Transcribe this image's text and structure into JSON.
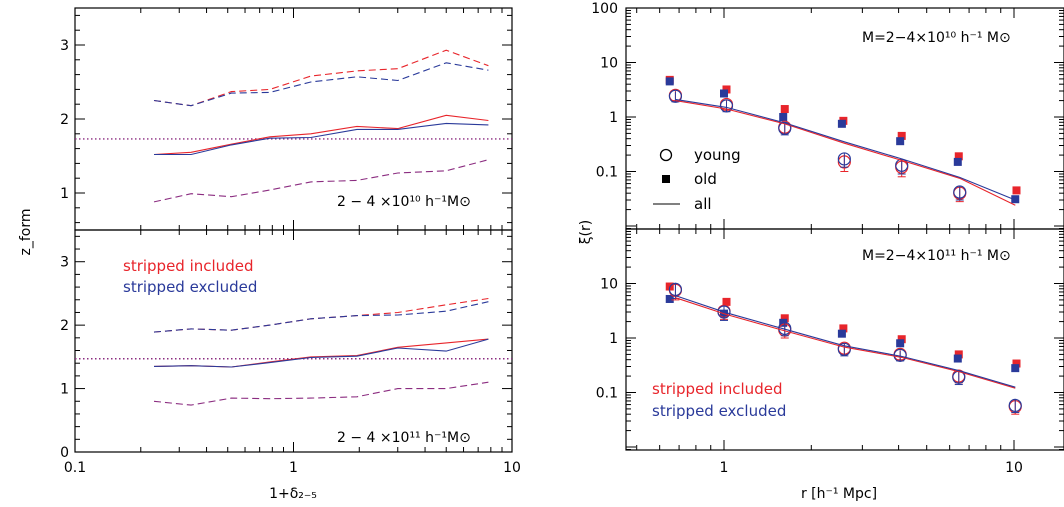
{
  "colors": {
    "red": "#e8252b",
    "blue": "#2a3a9a",
    "purple": "#8b2c80",
    "black": "#000000"
  },
  "left_figure": {
    "xlabel": "1+δ₂₋₅",
    "ylabel": "z_form",
    "xticks": [
      "0.1",
      "1",
      "10"
    ],
    "yticks_top": [
      "1",
      "2",
      "3"
    ],
    "yticks_bottom": [
      "0",
      "1",
      "2",
      "3"
    ],
    "top_label": "2 − 4 ×10¹⁰ h⁻¹M⊙",
    "bottom_label": "2 − 4 ×10¹¹ h⁻¹M⊙",
    "legend": {
      "red": "stripped included",
      "blue": "stripped excluded"
    }
  },
  "right_figure": {
    "xlabel": "r [h⁻¹ Mpc]",
    "ylabel": "ξ(r)",
    "xticks": [
      "1",
      "10"
    ],
    "yticks": [
      "0.1",
      "1",
      "10",
      "100"
    ],
    "top_label": "M=2−4×10¹⁰ h⁻¹ M⊙",
    "bottom_label": "M=2−4×10¹¹ h⁻¹ M⊙",
    "legend": {
      "young": "young",
      "old": "old",
      "all": "all"
    },
    "legend_bottom": {
      "red": "stripped included",
      "blue": "stripped excluded"
    }
  },
  "chart_data": [
    {
      "type": "line",
      "title": "2 − 4 ×10¹⁰ h⁻¹M⊙",
      "xlabel": "1+δ₂₋₅",
      "ylabel": "z_form",
      "xscale": "log",
      "xlim": [
        0.1,
        10
      ],
      "ylim": [
        0.5,
        3.5
      ],
      "x": [
        0.23,
        0.34,
        0.52,
        0.78,
        1.2,
        1.95,
        3.0,
        5.0,
        7.8
      ],
      "hline": 1.73,
      "series": [
        {
          "name": "stripped included",
          "style": "solid",
          "color": "red",
          "values": [
            1.52,
            1.55,
            1.66,
            1.76,
            1.8,
            1.9,
            1.87,
            2.05,
            1.98
          ]
        },
        {
          "name": "stripped excluded",
          "style": "solid",
          "color": "blue",
          "values": [
            1.52,
            1.52,
            1.65,
            1.74,
            1.75,
            1.86,
            1.86,
            1.94,
            1.92
          ]
        },
        {
          "name": "stripped included",
          "style": "dashed",
          "color": "red",
          "values": [
            2.25,
            2.18,
            2.37,
            2.4,
            2.58,
            2.65,
            2.68,
            2.93,
            2.72
          ]
        },
        {
          "name": "stripped excluded",
          "style": "dashed",
          "color": "blue",
          "values": [
            2.25,
            2.18,
            2.35,
            2.36,
            2.5,
            2.57,
            2.52,
            2.76,
            2.66
          ]
        },
        {
          "name": "",
          "style": "dashed",
          "color": "purple",
          "values": [
            0.88,
            0.99,
            0.95,
            1.04,
            1.15,
            1.17,
            1.27,
            1.3,
            1.45
          ]
        }
      ]
    },
    {
      "type": "line",
      "title": "2 − 4 ×10¹¹ h⁻¹M⊙",
      "xlabel": "1+δ₂₋₅",
      "ylabel": "z_form",
      "xscale": "log",
      "xlim": [
        0.1,
        10
      ],
      "ylim": [
        0,
        3.5
      ],
      "x": [
        0.23,
        0.34,
        0.52,
        0.78,
        1.2,
        1.95,
        3.0,
        5.0,
        7.8
      ],
      "hline": 1.47,
      "series": [
        {
          "name": "stripped included",
          "style": "solid",
          "color": "red",
          "values": [
            1.35,
            1.36,
            1.34,
            1.42,
            1.5,
            1.52,
            1.65,
            1.72,
            1.78
          ]
        },
        {
          "name": "stripped excluded",
          "style": "solid",
          "color": "blue",
          "values": [
            1.35,
            1.36,
            1.34,
            1.41,
            1.49,
            1.51,
            1.64,
            1.59,
            1.78
          ]
        },
        {
          "name": "stripped included",
          "style": "dashed",
          "color": "red",
          "values": [
            1.89,
            1.94,
            1.92,
            2.0,
            2.1,
            2.15,
            2.2,
            2.32,
            2.42
          ]
        },
        {
          "name": "stripped excluded",
          "style": "dashed",
          "color": "blue",
          "values": [
            1.89,
            1.94,
            1.92,
            2.0,
            2.1,
            2.15,
            2.16,
            2.22,
            2.37
          ]
        },
        {
          "name": "",
          "style": "dashed",
          "color": "purple",
          "values": [
            0.8,
            0.74,
            0.85,
            0.84,
            0.85,
            0.87,
            1.0,
            1.0,
            1.1
          ]
        }
      ]
    },
    {
      "type": "scatter",
      "title": "M=2−4×10¹⁰ h⁻¹ M⊙",
      "xlabel": "r [h⁻¹ Mpc]",
      "ylabel": "ξ(r)",
      "xscale": "log",
      "yscale": "log",
      "xlim": [
        0.5,
        12
      ],
      "ylim": [
        0.02,
        100
      ],
      "series": [
        {
          "name": "old",
          "marker": "square",
          "color": "red",
          "x": [
            0.65,
            1.02,
            1.62,
            2.58,
            4.1,
            6.45,
            10.2
          ],
          "values": [
            4.8,
            3.2,
            1.4,
            0.85,
            0.45,
            0.19,
            0.045
          ]
        },
        {
          "name": "old",
          "marker": "square",
          "color": "blue",
          "x": [
            0.65,
            1.0,
            1.6,
            2.55,
            4.05,
            6.4,
            10.1
          ],
          "values": [
            4.5,
            2.7,
            1.0,
            0.75,
            0.36,
            0.15,
            0.031
          ]
        },
        {
          "name": "young",
          "marker": "circle",
          "color": "red",
          "x": [
            0.68,
            1.02,
            1.62,
            2.6,
            4.1,
            6.5
          ],
          "values": [
            2.5,
            1.7,
            0.65,
            0.15,
            0.12,
            0.04
          ],
          "err": [
            0.5,
            0.35,
            0.15,
            0.05,
            0.04,
            0.012
          ]
        },
        {
          "name": "young",
          "marker": "circle",
          "color": "blue",
          "x": [
            0.68,
            1.02,
            1.62,
            2.6,
            4.1,
            6.5
          ],
          "values": [
            2.4,
            1.6,
            0.62,
            0.17,
            0.13,
            0.042
          ],
          "err": [
            0.5,
            0.35,
            0.15,
            0.05,
            0.04,
            0.012
          ]
        },
        {
          "name": "all",
          "marker": "line",
          "color": "red",
          "x": [
            0.68,
            1.02,
            1.62,
            2.6,
            4.1,
            6.5,
            10.1
          ],
          "values": [
            2.0,
            1.4,
            0.75,
            0.33,
            0.16,
            0.075,
            0.024
          ]
        },
        {
          "name": "all",
          "marker": "line",
          "color": "blue",
          "x": [
            0.68,
            1.02,
            1.62,
            2.6,
            4.1,
            6.5,
            10.1
          ],
          "values": [
            2.1,
            1.5,
            0.78,
            0.35,
            0.17,
            0.078,
            0.03
          ]
        }
      ]
    },
    {
      "type": "scatter",
      "title": "M=2−4×10¹¹ h⁻¹ M⊙",
      "xlabel": "r [h⁻¹ Mpc]",
      "ylabel": "ξ(r)",
      "xscale": "log",
      "yscale": "log",
      "xlim": [
        0.5,
        12
      ],
      "ylim": [
        0.02,
        100
      ],
      "series": [
        {
          "name": "stripped included",
          "marker": "square",
          "color": "red",
          "x": [
            0.65,
            1.02,
            1.62,
            2.58,
            4.1,
            6.45,
            10.2
          ],
          "values": [
            8.8,
            4.6,
            2.3,
            1.5,
            0.95,
            0.5,
            0.34
          ]
        },
        {
          "name": "stripped excluded",
          "marker": "square",
          "color": "blue",
          "x": [
            0.65,
            1.0,
            1.6,
            2.55,
            4.05,
            6.4,
            10.1
          ],
          "values": [
            5.2,
            2.8,
            1.9,
            1.2,
            0.8,
            0.42,
            0.28
          ]
        },
        {
          "name": "stripped included",
          "marker": "circle",
          "color": "red",
          "x": [
            0.68,
            1.0,
            1.62,
            2.6,
            4.05,
            6.45,
            10.1
          ],
          "values": [
            7.5,
            3.1,
            1.4,
            0.65,
            0.5,
            0.2,
            0.055
          ],
          "err": [
            2.5,
            0.9,
            0.4,
            0.15,
            0.1,
            0.05,
            0.015
          ]
        },
        {
          "name": "stripped excluded",
          "marker": "circle",
          "color": "blue",
          "x": [
            0.68,
            1.0,
            1.62,
            2.6,
            4.05,
            6.45,
            10.1
          ],
          "values": [
            7.8,
            3.0,
            1.5,
            0.62,
            0.48,
            0.19,
            0.058
          ],
          "err": [
            2.5,
            0.9,
            0.4,
            0.15,
            0.1,
            0.05,
            0.015
          ]
        },
        {
          "name": "stripped included",
          "marker": "line",
          "color": "red",
          "x": [
            0.68,
            1.02,
            1.62,
            2.6,
            4.1,
            6.5,
            10.1
          ],
          "values": [
            5.5,
            2.7,
            1.35,
            0.68,
            0.44,
            0.24,
            0.12
          ]
        },
        {
          "name": "stripped excluded",
          "marker": "line",
          "color": "blue",
          "x": [
            0.68,
            1.02,
            1.62,
            2.6,
            4.1,
            6.5,
            10.1
          ],
          "values": [
            6.0,
            2.9,
            1.45,
            0.72,
            0.46,
            0.25,
            0.125
          ]
        }
      ]
    }
  ]
}
